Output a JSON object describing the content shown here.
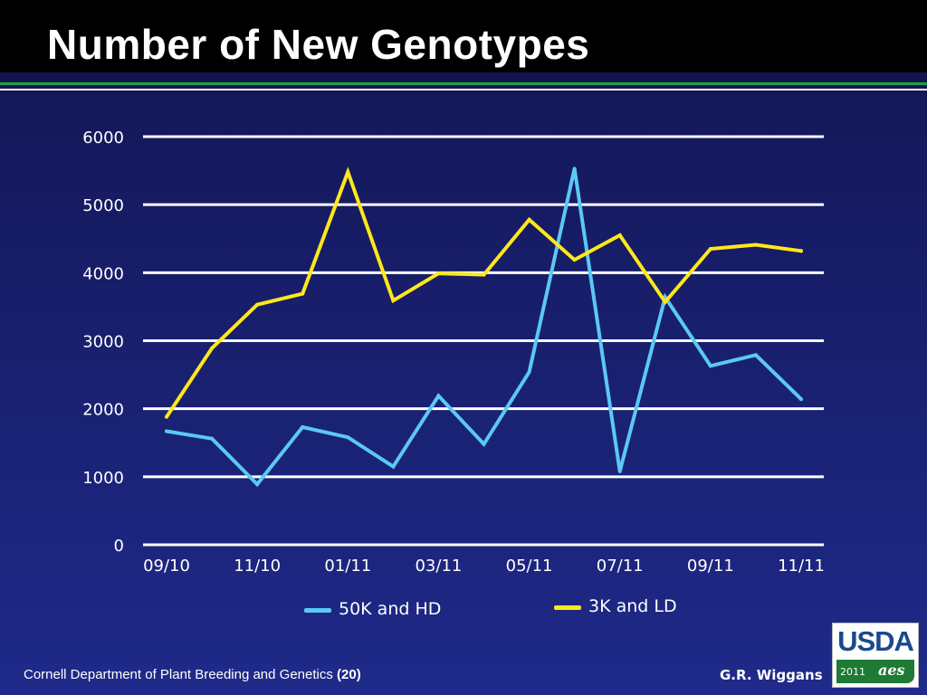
{
  "slide": {
    "title": "Number of New Genotypes",
    "footer_left": "Cornell Department of Plant Breeding and Genetics",
    "footer_page": "(20)",
    "footer_right": "G.R. Wiggans",
    "logo_text": "USDA",
    "logo_year": "2011",
    "logo_mark": "aes"
  },
  "colors": {
    "series_50k": "#5bc8f5",
    "series_3k": "#ffe81a",
    "gridline": "#ffffff",
    "accent_green": "#22a03a"
  },
  "chart_data": {
    "type": "line",
    "title": "",
    "xlabel": "",
    "ylabel": "",
    "ylim": [
      0,
      6000
    ],
    "yticks": [
      "0",
      "1000",
      "2000",
      "3000",
      "4000",
      "5000",
      "6000"
    ],
    "x_tick_labels": [
      "09/10",
      "11/10",
      "01/11",
      "03/11",
      "05/11",
      "07/11",
      "09/11",
      "11/11"
    ],
    "x_tick_indices": [
      0,
      2,
      4,
      6,
      8,
      10,
      12,
      14
    ],
    "n_points": 15,
    "grid": true,
    "legend": "bottom",
    "series": [
      {
        "name": "50K and HD",
        "color": "#5bc8f5",
        "values": [
          1670,
          1560,
          890,
          1730,
          1580,
          1150,
          2190,
          1480,
          2540,
          5530,
          1080,
          3640,
          2630,
          2790,
          2140
        ]
      },
      {
        "name": "3K and LD",
        "color": "#ffe81a",
        "values": [
          1880,
          2890,
          3530,
          3690,
          5480,
          3590,
          3990,
          3970,
          4780,
          4190,
          4550,
          3570,
          4350,
          4410,
          4320
        ]
      }
    ]
  }
}
